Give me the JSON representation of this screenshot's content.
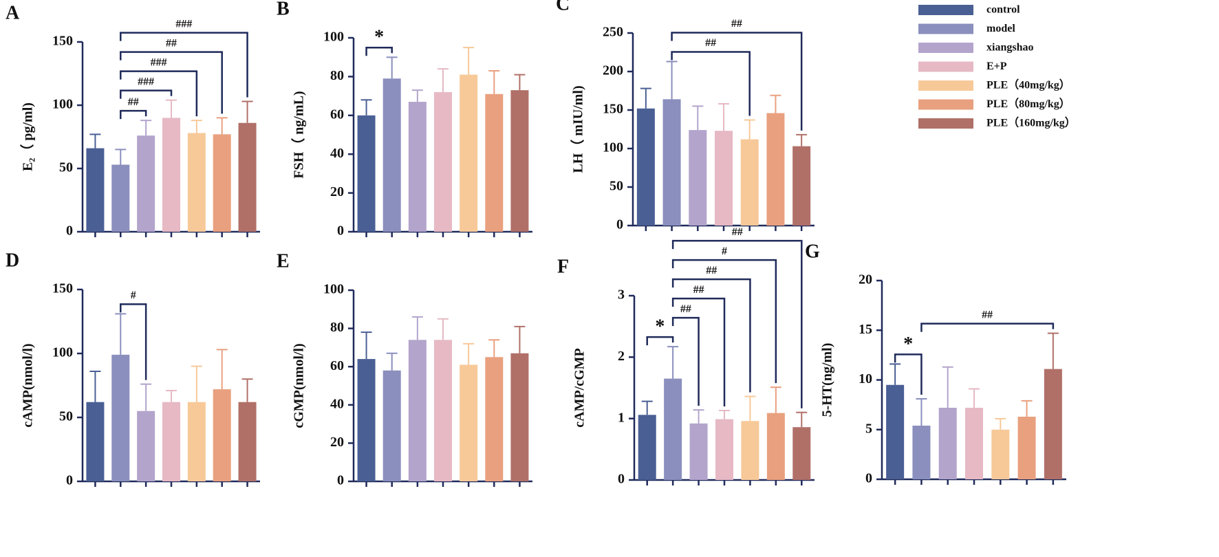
{
  "legend": [
    {
      "name": "control",
      "color": "#4a5f94"
    },
    {
      "name": "model",
      "color": "#8a8fbd"
    },
    {
      "name": "xiangshao",
      "color": "#b3a4cc"
    },
    {
      "name": "E+P",
      "color": "#e6b9c4"
    },
    {
      "name": "PLE（40mg/kg）",
      "color": "#f7c999"
    },
    {
      "name": "PLE（80mg/kg）",
      "color": "#e9a07f"
    },
    {
      "name": "PLE（160mg/kg）",
      "color": "#b07068"
    }
  ],
  "chart_data": [
    {
      "type": "bar",
      "panel_label": "A",
      "ylabel": "E₂（ pg/ml)",
      "ylim": [
        0,
        150
      ],
      "yticks": [
        0,
        50,
        100,
        150
      ],
      "values": [
        66,
        53,
        76,
        90,
        78,
        77,
        86
      ],
      "errors": [
        11,
        12,
        12,
        14,
        10,
        13,
        17
      ],
      "comparisons": [
        {
          "label": "##",
          "bars": [
            1,
            2
          ]
        },
        {
          "label": "###",
          "bars": [
            1,
            3
          ]
        },
        {
          "label": "###",
          "bars": [
            1,
            4
          ]
        },
        {
          "label": "##",
          "bars": [
            1,
            5
          ]
        },
        {
          "label": "###",
          "bars": [
            1,
            6
          ]
        }
      ]
    },
    {
      "type": "bar",
      "panel_label": "B",
      "ylabel": "FSH（ ng/mL)",
      "ylim": [
        0,
        100
      ],
      "yticks": [
        0,
        20,
        40,
        60,
        80,
        100
      ],
      "values": [
        60,
        79,
        67,
        72,
        81,
        71,
        73
      ],
      "errors": [
        8,
        11,
        6,
        12,
        14,
        12,
        8
      ],
      "comparisons": [
        {
          "label": "*",
          "bars": [
            0,
            1
          ]
        }
      ]
    },
    {
      "type": "bar",
      "panel_label": "C",
      "ylabel": "LH（ mIU/ml)",
      "ylim": [
        0,
        250
      ],
      "yticks": [
        0,
        50,
        100,
        150,
        200,
        250
      ],
      "values": [
        152,
        164,
        124,
        123,
        112,
        146,
        103
      ],
      "errors": [
        26,
        49,
        31,
        35,
        25,
        23,
        15
      ],
      "comparisons": [
        {
          "label": "##",
          "bars": [
            1,
            4
          ]
        },
        {
          "label": "##",
          "bars": [
            1,
            6
          ]
        }
      ]
    },
    {
      "type": "bar",
      "panel_label": "D",
      "ylabel": "cAMP(nmol/l)",
      "ylim": [
        0,
        150
      ],
      "yticks": [
        0,
        50,
        100,
        150
      ],
      "values": [
        62,
        99,
        55,
        62,
        62,
        72,
        62
      ],
      "errors": [
        24,
        32,
        21,
        9,
        28,
        31,
        18
      ],
      "comparisons": [
        {
          "label": "#",
          "bars": [
            1,
            2
          ]
        }
      ]
    },
    {
      "type": "bar",
      "panel_label": "E",
      "ylabel": "cGMP(nmol/l)",
      "ylim": [
        0,
        100
      ],
      "yticks": [
        0,
        20,
        40,
        60,
        80,
        100
      ],
      "values": [
        64,
        58,
        74,
        74,
        61,
        65,
        67
      ],
      "errors": [
        14,
        9,
        12,
        11,
        11,
        9,
        14
      ],
      "comparisons": []
    },
    {
      "type": "bar",
      "panel_label": "F",
      "ylabel": "cAMP/cGMP",
      "ylim": [
        0,
        3
      ],
      "yticks": [
        0,
        1,
        2,
        3
      ],
      "values": [
        1.06,
        1.65,
        0.92,
        0.99,
        0.96,
        1.09,
        0.86
      ],
      "errors": [
        0.22,
        0.52,
        0.22,
        0.14,
        0.4,
        0.42,
        0.24
      ],
      "comparisons": [
        {
          "label": "*",
          "bars": [
            0,
            1
          ]
        },
        {
          "label": "##",
          "bars": [
            1,
            2
          ]
        },
        {
          "label": "##",
          "bars": [
            1,
            3
          ]
        },
        {
          "label": "##",
          "bars": [
            1,
            4
          ]
        },
        {
          "label": "#",
          "bars": [
            1,
            5
          ]
        },
        {
          "label": "##",
          "bars": [
            1,
            6
          ]
        }
      ]
    },
    {
      "type": "bar",
      "panel_label": "G",
      "ylabel": "5-HT(ng/ml)",
      "ylim": [
        0,
        20
      ],
      "yticks": [
        0,
        5,
        10,
        15,
        20
      ],
      "values": [
        9.5,
        5.4,
        7.2,
        7.2,
        5.0,
        6.3,
        11.1
      ],
      "errors": [
        2.1,
        2.7,
        4.1,
        1.9,
        1.1,
        1.6,
        3.6
      ],
      "comparisons": [
        {
          "label": "*",
          "bars": [
            0,
            1
          ]
        },
        {
          "label": "##",
          "bars": [
            1,
            6
          ]
        }
      ]
    }
  ]
}
